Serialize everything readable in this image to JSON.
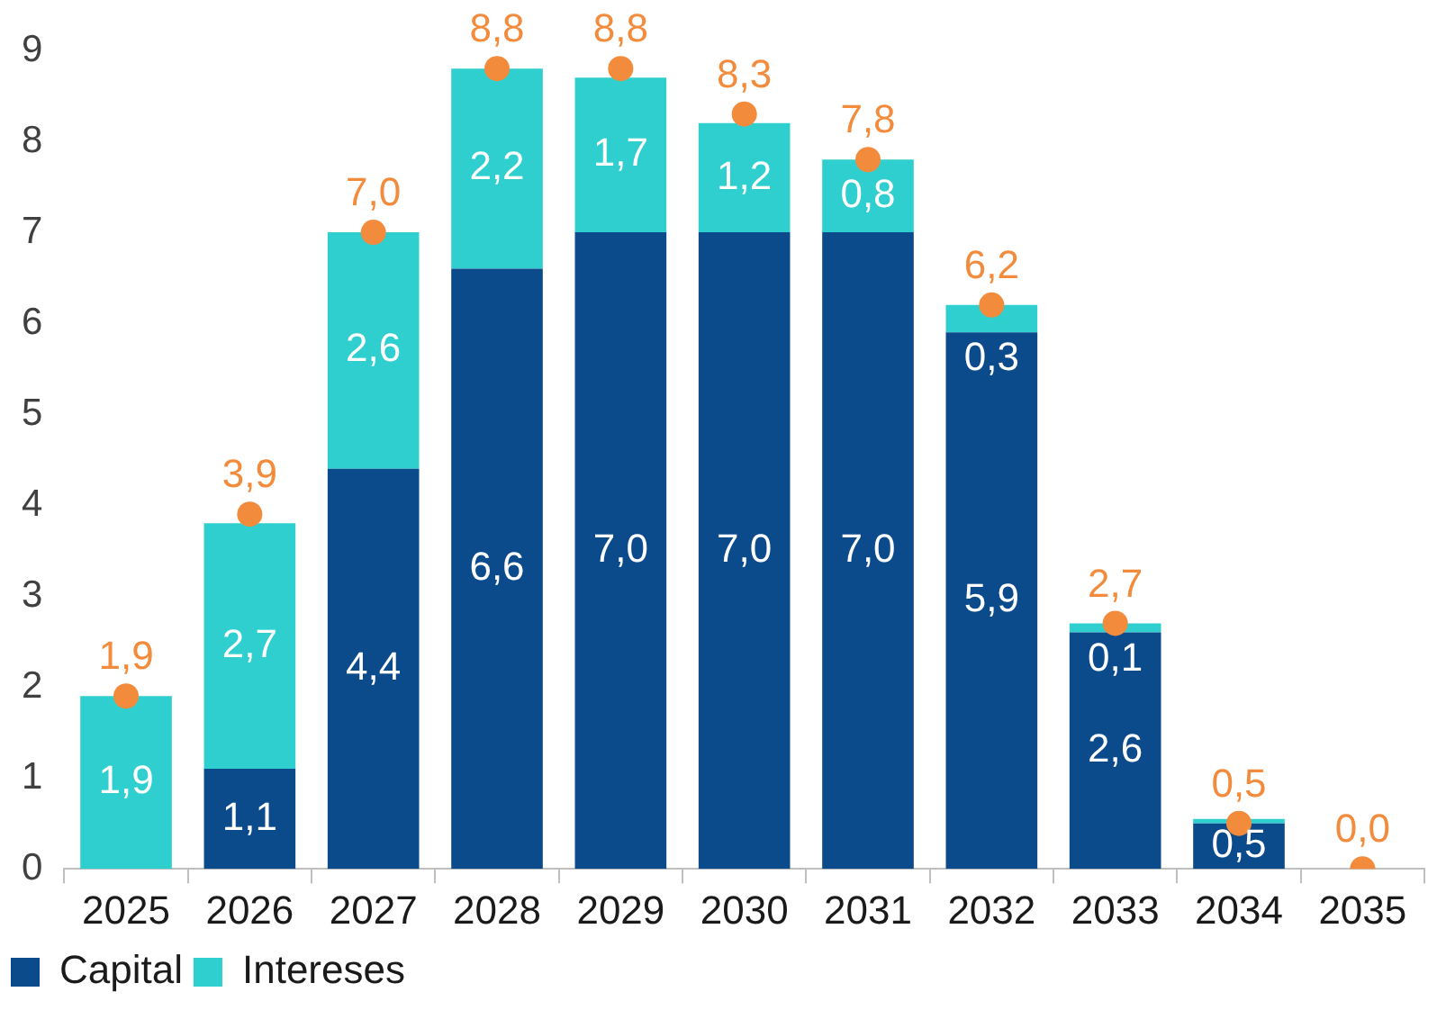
{
  "chart_data": {
    "type": "bar",
    "stacked": true,
    "categories": [
      "2025",
      "2026",
      "2027",
      "2028",
      "2029",
      "2030",
      "2031",
      "2032",
      "2033",
      "2034",
      "2035"
    ],
    "series": [
      {
        "name": "Capital",
        "color": "#0b4a8b",
        "values": [
          0,
          1.1,
          4.4,
          6.6,
          7.0,
          7.0,
          7.0,
          5.9,
          2.6,
          0.5,
          0
        ],
        "value_labels": [
          null,
          "1,1",
          "4,4",
          "6,6",
          "7,0",
          "7,0",
          "7,0",
          "5,9",
          "2,6",
          "0,5",
          null
        ]
      },
      {
        "name": "Intereses",
        "color": "#2fcfcf",
        "values": [
          1.9,
          2.7,
          2.6,
          2.2,
          1.7,
          1.2,
          0.8,
          0.3,
          0.1,
          0.05,
          0
        ],
        "value_labels": [
          "1,9",
          "2,7",
          "2,6",
          "2,2",
          "1,7",
          "1,2",
          "0,8",
          "0,3",
          "0,1",
          null,
          null
        ]
      },
      {
        "type": "scatter",
        "color": "#f38b3c",
        "values": [
          1.9,
          3.9,
          7.0,
          8.8,
          8.8,
          8.3,
          7.8,
          6.2,
          2.7,
          0.5,
          0.0
        ],
        "value_labels": [
          "1,9",
          "3,9",
          "7,0",
          "8,8",
          "8,8",
          "8,3",
          "7,8",
          "6,2",
          "2,7",
          "0,5",
          "0,0"
        ]
      }
    ],
    "ylim": [
      0,
      9
    ],
    "yticks": [
      0,
      1,
      2,
      3,
      4,
      5,
      6,
      7,
      8,
      9
    ],
    "grid": false,
    "legend": "bottom left",
    "marker": "circle"
  }
}
